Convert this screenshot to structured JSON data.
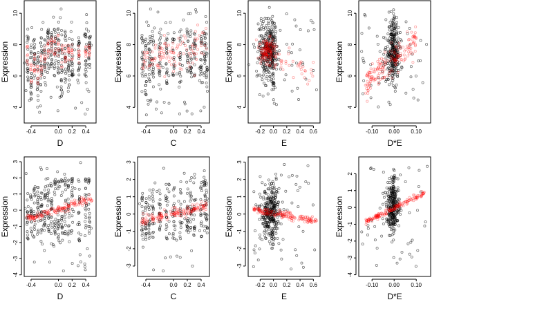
{
  "chart_data": [
    {
      "type": "scatter",
      "id": "top-D",
      "xlabel": "D",
      "ylabel": "Expression",
      "xlim": [
        -0.5,
        0.55
      ],
      "ylim": [
        3.0,
        10.8
      ],
      "xticks": [
        -0.4,
        0.0,
        0.2,
        0.4
      ],
      "xtick_labels": [
        "-0.4",
        "0.0",
        "0.2",
        "0.4"
      ],
      "yticks": [
        4,
        6,
        8,
        10
      ],
      "ytick_labels": [
        "4",
        "6",
        "8",
        "10"
      ],
      "black_bands": [
        [
          -0.45,
          5.0,
          9.0
        ],
        [
          -0.4,
          4.5,
          8.0
        ],
        [
          -0.35,
          5.0,
          8.5
        ],
        [
          -0.3,
          4.0,
          7.5
        ],
        [
          -0.25,
          5.0,
          8.5
        ],
        [
          -0.2,
          5.5,
          8.5
        ],
        [
          -0.15,
          6.5,
          9.0
        ],
        [
          -0.1,
          6.5,
          9.0
        ],
        [
          -0.05,
          6.0,
          9.0
        ],
        [
          0.0,
          6.0,
          9.5
        ],
        [
          0.05,
          4.5,
          9.0
        ],
        [
          0.1,
          5.5,
          9.0
        ],
        [
          0.15,
          5.0,
          8.5
        ],
        [
          0.2,
          6.0,
          8.5
        ],
        [
          0.3,
          6.0,
          8.5
        ],
        [
          0.4,
          5.5,
          9.0
        ],
        [
          0.45,
          6.5,
          8.5
        ]
      ],
      "red_bands": [
        [
          -0.45,
          6.5,
          8.0
        ],
        [
          -0.4,
          5.5,
          7.0
        ],
        [
          -0.35,
          6.2,
          7.5
        ],
        [
          -0.3,
          5.5,
          7.0
        ],
        [
          -0.25,
          6.0,
          7.5
        ],
        [
          -0.2,
          6.5,
          8.0
        ],
        [
          -0.15,
          7.2,
          8.5
        ],
        [
          -0.1,
          7.5,
          8.5
        ],
        [
          -0.05,
          7.2,
          8.5
        ],
        [
          0.0,
          7.2,
          8.8
        ],
        [
          0.05,
          6.5,
          8.0
        ],
        [
          0.1,
          6.8,
          8.0
        ],
        [
          0.15,
          6.8,
          8.0
        ],
        [
          0.2,
          7.0,
          8.0
        ],
        [
          0.3,
          6.8,
          8.0
        ],
        [
          0.4,
          7.0,
          8.0
        ],
        [
          0.45,
          7.2,
          8.0
        ]
      ],
      "scatter_band": [
        -0.5,
        0.5,
        3.5,
        10.5
      ],
      "n_scatter": 60
    },
    {
      "type": "scatter",
      "id": "top-C",
      "xlabel": "C",
      "ylabel": "Expression",
      "xlim": [
        -0.52,
        0.52
      ],
      "ylim": [
        3.0,
        10.8
      ],
      "xticks": [
        -0.4,
        0.0,
        0.2,
        0.4
      ],
      "xtick_labels": [
        "-0.4",
        "0.0",
        "0.2",
        "0.4"
      ],
      "yticks": [
        4,
        6,
        8,
        10
      ],
      "ytick_labels": [
        "4",
        "6",
        "8",
        "10"
      ],
      "black_bands": [
        [
          -0.45,
          5.0,
          9.0
        ],
        [
          -0.4,
          4.5,
          8.5
        ],
        [
          -0.35,
          5.5,
          8.5
        ],
        [
          -0.3,
          5.0,
          9.0
        ],
        [
          -0.2,
          6.0,
          9.0
        ],
        [
          -0.1,
          5.5,
          8.5
        ],
        [
          0.0,
          6.0,
          9.0
        ],
        [
          0.1,
          5.5,
          9.0
        ],
        [
          0.2,
          6.0,
          9.0
        ],
        [
          0.25,
          6.0,
          9.0
        ],
        [
          0.3,
          6.0,
          9.0
        ],
        [
          0.4,
          5.5,
          9.0
        ],
        [
          0.45,
          6.0,
          9.0
        ],
        [
          0.48,
          5.0,
          9.0
        ]
      ],
      "red_line": [
        [
          -0.45,
          7.0
        ],
        [
          0.48,
          7.9
        ]
      ],
      "red_spread": 0.6,
      "n_red": 110,
      "scatter_band": [
        -0.5,
        0.5,
        3.5,
        10.3
      ],
      "n_scatter": 60
    },
    {
      "type": "scatter",
      "id": "top-E",
      "xlabel": "E",
      "ylabel": "Expression",
      "xlim": [
        -0.38,
        0.7
      ],
      "ylim": [
        3.0,
        10.8
      ],
      "xticks": [
        -0.2,
        0.0,
        0.2,
        0.4,
        0.6
      ],
      "xtick_labels": [
        "-0.2",
        "0.0",
        "0.2",
        "0.4",
        "0.6"
      ],
      "yticks": [
        4,
        6,
        8,
        10
      ],
      "ytick_labels": [
        "4",
        "6",
        "8",
        "10"
      ],
      "black_blob": [
        -0.08,
        7.5,
        0.12,
        1.3
      ],
      "n_blob": 300,
      "black_bands": [
        [
          -0.02,
          5.0,
          10.0
        ],
        [
          0.0,
          5.0,
          9.5
        ]
      ],
      "red_blob": [
        -0.1,
        7.6,
        0.1,
        0.6
      ],
      "n_red_blob": 120,
      "red_line": [
        [
          0.0,
          7.5
        ],
        [
          0.6,
          6.0
        ]
      ],
      "red_spread": 0.4,
      "n_red": 40,
      "scatter_band": [
        -0.3,
        0.65,
        4.0,
        10.0
      ],
      "n_scatter": 50
    },
    {
      "type": "scatter",
      "id": "top-DE",
      "xlabel": "D*E",
      "ylabel": "Expression",
      "xlim": [
        -0.16,
        0.165
      ],
      "ylim": [
        3.0,
        10.8
      ],
      "xticks": [
        -0.1,
        0.0,
        0.1
      ],
      "xtick_labels": [
        "-0.10",
        "0.00",
        "0.10"
      ],
      "yticks": [
        4,
        6,
        8,
        10
      ],
      "ytick_labels": [
        "4",
        "6",
        "8",
        "10"
      ],
      "black_blob": [
        -0.005,
        7.6,
        0.025,
        1.3
      ],
      "n_blob": 260,
      "black_bands": [
        [
          -0.005,
          5.0,
          10.5
        ],
        [
          0.0,
          5.0,
          10.0
        ]
      ],
      "red_line": [
        [
          -0.13,
          5.5
        ],
        [
          0.1,
          8.2
        ]
      ],
      "red_spread": 0.5,
      "n_red": 170,
      "scatter_band": [
        -0.15,
        0.15,
        4.0,
        10.0
      ],
      "n_scatter": 50
    },
    {
      "type": "scatter",
      "id": "bottom-D",
      "xlabel": "D",
      "ylabel": "Expression",
      "xlim": [
        -0.5,
        0.55
      ],
      "ylim": [
        -4.1,
        3.3
      ],
      "xticks": [
        -0.4,
        0.0,
        0.2,
        0.4
      ],
      "xtick_labels": [
        "-0.4",
        "0.0",
        "0.2",
        "0.4"
      ],
      "yticks": [
        -4,
        -3,
        -2,
        -1,
        0,
        1,
        2,
        3
      ],
      "ytick_labels": [
        "-4",
        "-3",
        "-2",
        "-1",
        "0",
        "1",
        "2",
        "3"
      ],
      "black_bands": [
        [
          -0.45,
          -2.0,
          1.5
        ],
        [
          -0.4,
          -1.5,
          1.0
        ],
        [
          -0.35,
          -2.0,
          1.5
        ],
        [
          -0.3,
          -1.5,
          1.5
        ],
        [
          -0.25,
          -2.0,
          1.5
        ],
        [
          -0.2,
          -1.5,
          1.5
        ],
        [
          -0.15,
          -1.5,
          2.0
        ],
        [
          -0.1,
          -1.5,
          2.0
        ],
        [
          -0.05,
          -1.5,
          2.0
        ],
        [
          0.0,
          -2.0,
          2.0
        ],
        [
          0.05,
          -2.0,
          2.0
        ],
        [
          0.1,
          -1.5,
          2.5
        ],
        [
          0.15,
          -2.0,
          2.0
        ],
        [
          0.2,
          -1.5,
          2.0
        ],
        [
          0.3,
          -2.0,
          2.0
        ],
        [
          0.4,
          -1.5,
          2.0
        ],
        [
          0.45,
          -1.5,
          2.0
        ]
      ],
      "red_line": [
        [
          -0.47,
          -0.55
        ],
        [
          0.5,
          0.7
        ]
      ],
      "red_spread": 0.12,
      "n_red": 150,
      "scatter_band": [
        -0.5,
        0.5,
        -3.8,
        3.0
      ],
      "n_scatter": 50
    },
    {
      "type": "scatter",
      "id": "bottom-C",
      "xlabel": "C",
      "ylabel": "Expression",
      "xlim": [
        -0.52,
        0.52
      ],
      "ylim": [
        -3.6,
        3.3
      ],
      "xticks": [
        -0.4,
        0.0,
        0.2,
        0.4
      ],
      "xtick_labels": [
        "-0.4",
        "0.0",
        "0.2",
        "0.4"
      ],
      "yticks": [
        -3,
        -2,
        -1,
        0,
        1,
        2,
        3
      ],
      "ytick_labels": [
        "-3",
        "-2",
        "-1",
        "0",
        "1",
        "2",
        "3"
      ],
      "black_bands": [
        [
          -0.45,
          -1.5,
          1.5
        ],
        [
          -0.4,
          -1.5,
          1.0
        ],
        [
          -0.35,
          -1.5,
          1.5
        ],
        [
          -0.3,
          -1.5,
          1.5
        ],
        [
          -0.2,
          -1.0,
          1.5
        ],
        [
          -0.1,
          -1.5,
          1.5
        ],
        [
          0.0,
          -1.5,
          1.5
        ],
        [
          0.1,
          -1.5,
          2.0
        ],
        [
          0.2,
          -1.5,
          2.0
        ],
        [
          0.25,
          -1.0,
          2.0
        ],
        [
          0.3,
          -1.5,
          2.5
        ],
        [
          0.4,
          -1.5,
          2.0
        ],
        [
          0.45,
          -1.0,
          2.5
        ],
        [
          0.48,
          -1.5,
          2.0
        ]
      ],
      "red_line": [
        [
          -0.47,
          -0.45
        ],
        [
          0.48,
          0.5
        ]
      ],
      "red_spread": 0.15,
      "n_red": 150,
      "scatter_band": [
        -0.5,
        0.5,
        -3.4,
        3.0
      ],
      "n_scatter": 45
    },
    {
      "type": "scatter",
      "id": "bottom-E",
      "xlabel": "E",
      "ylabel": "Expression",
      "xlim": [
        -0.38,
        0.7
      ],
      "ylim": [
        -3.6,
        3.3
      ],
      "xticks": [
        -0.2,
        0.0,
        0.2,
        0.4,
        0.6
      ],
      "xtick_labels": [
        "-0.2",
        "0.0",
        "0.2",
        "0.4",
        "0.6"
      ],
      "yticks": [
        -3,
        -2,
        -1,
        0,
        1,
        2,
        3
      ],
      "ytick_labels": [
        "-3",
        "-2",
        "-1",
        "0",
        "1",
        "2",
        "3"
      ],
      "black_blob": [
        -0.05,
        0.0,
        0.12,
        1.0
      ],
      "n_blob": 280,
      "black_bands": [
        [
          -0.02,
          -2.0,
          2.0
        ],
        [
          0.0,
          -2.0,
          2.0
        ]
      ],
      "red_line": [
        [
          -0.3,
          0.25
        ],
        [
          0.65,
          -0.4
        ]
      ],
      "red_spread": 0.1,
      "n_red": 160,
      "scatter_band": [
        -0.3,
        0.65,
        -3.2,
        3.0
      ],
      "n_scatter": 50
    },
    {
      "type": "scatter",
      "id": "bottom-DE",
      "xlabel": "D*E",
      "ylabel": "Expression",
      "xlim": [
        -0.16,
        0.165
      ],
      "ylim": [
        -4.1,
        3.0
      ],
      "xticks": [
        -0.1,
        0.0,
        0.1
      ],
      "xtick_labels": [
        "-0.10",
        "0.00",
        "0.10"
      ],
      "yticks": [
        -4,
        -3,
        -2,
        -1,
        0,
        1,
        2
      ],
      "ytick_labels": [
        "-4",
        "-3",
        "-2",
        "-1",
        "0",
        "1",
        "2"
      ],
      "black_blob": [
        -0.005,
        0.0,
        0.025,
        1.0
      ],
      "n_blob": 260,
      "black_bands": [
        [
          -0.005,
          -2.5,
          2.5
        ],
        [
          0.0,
          -2.0,
          2.5
        ]
      ],
      "red_line": [
        [
          -0.13,
          -0.85
        ],
        [
          0.14,
          0.85
        ]
      ],
      "red_spread": 0.08,
      "n_red": 160,
      "scatter_band": [
        -0.15,
        0.15,
        -3.5,
        2.5
      ],
      "n_scatter": 45
    }
  ]
}
